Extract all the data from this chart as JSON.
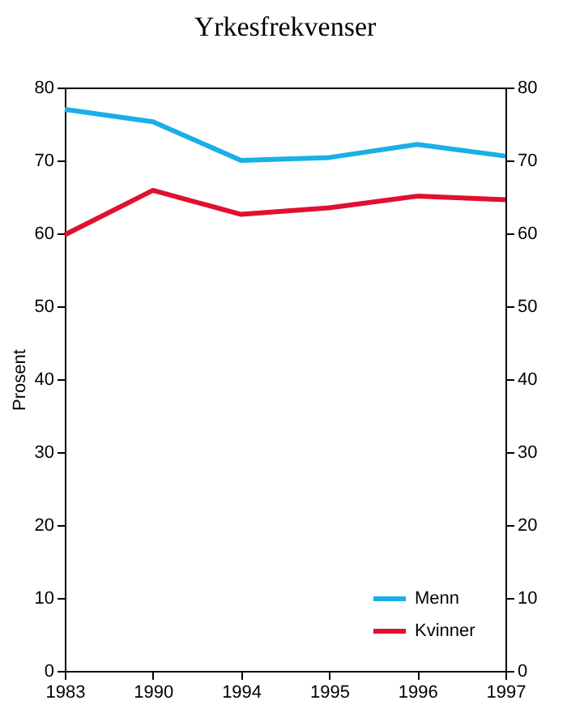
{
  "chart_data": {
    "type": "line",
    "title": "Yrkesfrekvenser",
    "ylabel": "Prosent",
    "categories": [
      "1983",
      "1990",
      "1994",
      "1995",
      "1996",
      "1997"
    ],
    "series": [
      {
        "name": "Menn",
        "color": "#1aafe6",
        "values": [
          77,
          75.3,
          70,
          70.4,
          72.2,
          70.6
        ]
      },
      {
        "name": "Kvinner",
        "color": "#e0102f",
        "values": [
          59.8,
          65.9,
          62.6,
          63.5,
          65.1,
          64.6
        ]
      }
    ],
    "ylim": [
      0,
      80
    ],
    "yticks": [
      0,
      10,
      20,
      30,
      40,
      50,
      60,
      70,
      80
    ],
    "y2lim": [
      0,
      80
    ],
    "y2ticks": [
      0,
      10,
      20,
      30,
      40,
      50,
      60,
      70,
      80
    ],
    "grid": false,
    "legend": "bottom right",
    "marker": "none",
    "line_style": "solid"
  }
}
